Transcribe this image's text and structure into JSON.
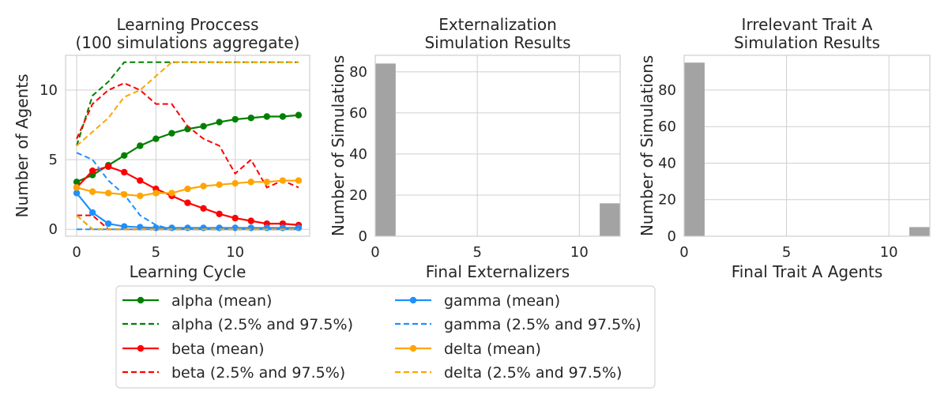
{
  "chart_data": [
    {
      "type": "line",
      "title": [
        "Learning Proccess",
        "(100 simulations aggregate)"
      ],
      "xlabel": "Learning Cycle",
      "ylabel": "Number of Agents",
      "xlim": [
        -0.7,
        14.7
      ],
      "ylim": [
        -0.5,
        12.5
      ],
      "xticks": [
        0,
        5,
        10
      ],
      "yticks": [
        0,
        5,
        10
      ],
      "grid": true,
      "x": [
        0,
        1,
        2,
        3,
        4,
        5,
        6,
        7,
        8,
        9,
        10,
        11,
        12,
        13,
        14
      ],
      "series": [
        {
          "name": "alpha (mean)",
          "style": "solid",
          "marker": true,
          "color": "#008000",
          "values": [
            3.4,
            3.9,
            4.6,
            5.3,
            6.0,
            6.5,
            6.9,
            7.2,
            7.4,
            7.7,
            7.9,
            8.0,
            8.1,
            8.1,
            8.2
          ]
        },
        {
          "name": "alpha (2.5% and 97.5%)",
          "style": "dashed",
          "marker": false,
          "color": "#008000",
          "values": [
            6.0,
            9.6,
            10.6,
            12.0,
            12.0,
            12.0,
            12.0,
            12.0,
            12.0,
            12.0,
            12.0,
            12.0,
            12.0,
            12.0,
            12.0
          ],
          "lower": [
            1.0,
            0.0,
            0.0,
            0.0,
            0.0,
            0.0,
            0.0,
            0.0,
            0.0,
            0.0,
            0.0,
            0.0,
            0.0,
            0.0,
            0.0
          ]
        },
        {
          "name": "beta (mean)",
          "style": "solid",
          "marker": true,
          "color": "#ff0000",
          "values": [
            3.0,
            4.2,
            4.5,
            4.1,
            3.5,
            2.9,
            2.4,
            1.9,
            1.5,
            1.1,
            0.8,
            0.6,
            0.4,
            0.4,
            0.3
          ]
        },
        {
          "name": "beta (2.5% and 97.5%)",
          "style": "dashed",
          "marker": false,
          "color": "#ff0000",
          "values": [
            6.5,
            9.0,
            10.0,
            10.5,
            10.0,
            9.0,
            9.0,
            7.4,
            6.5,
            6.0,
            4.0,
            5.0,
            3.0,
            3.5,
            3.0
          ],
          "lower": [
            1.0,
            1.0,
            0.0,
            0.0,
            0.0,
            0.0,
            0.0,
            0.0,
            0.0,
            0.0,
            0.0,
            0.0,
            0.0,
            0.0,
            0.0
          ]
        },
        {
          "name": "gamma (mean)",
          "style": "solid",
          "marker": true,
          "color": "#1e90ff",
          "values": [
            2.6,
            1.2,
            0.4,
            0.2,
            0.15,
            0.1,
            0.1,
            0.1,
            0.1,
            0.1,
            0.1,
            0.1,
            0.1,
            0.1,
            0.1
          ]
        },
        {
          "name": "gamma (2.5% and 97.5%)",
          "style": "dashed",
          "marker": false,
          "color": "#1e90ff",
          "values": [
            5.5,
            5.0,
            3.5,
            2.5,
            1.0,
            0.3,
            0.0,
            0.0,
            0.0,
            0.0,
            0.0,
            0.0,
            0.0,
            0.0,
            0.0
          ],
          "lower": [
            0.0,
            0.0,
            0.0,
            0.0,
            0.0,
            0.0,
            0.0,
            0.0,
            0.0,
            0.0,
            0.0,
            0.0,
            0.0,
            0.0,
            0.0
          ]
        },
        {
          "name": "delta (mean)",
          "style": "solid",
          "marker": true,
          "color": "#ffa500",
          "values": [
            3.0,
            2.7,
            2.6,
            2.5,
            2.4,
            2.6,
            2.6,
            2.9,
            3.1,
            3.2,
            3.3,
            3.4,
            3.4,
            3.5,
            3.5
          ]
        },
        {
          "name": "delta (2.5% and 97.5%)",
          "style": "dashed",
          "marker": false,
          "color": "#ffa500",
          "values": [
            6.0,
            7.0,
            8.0,
            9.5,
            10.0,
            11.0,
            12.0,
            12.0,
            12.0,
            12.0,
            12.0,
            12.0,
            12.0,
            12.0,
            12.0
          ],
          "lower": [
            1.0,
            0.0,
            0.0,
            0.0,
            0.0,
            0.0,
            0.0,
            0.0,
            0.0,
            0.0,
            0.0,
            0.0,
            0.0,
            0.0,
            0.0
          ]
        }
      ]
    },
    {
      "type": "bar",
      "title": [
        "Externalization",
        "Simulation Results"
      ],
      "xlabel": "Final Externalizers",
      "ylabel": "Number of Simulations",
      "xlim": [
        0,
        12
      ],
      "ylim": [
        0,
        88
      ],
      "xticks": [
        0,
        5,
        10
      ],
      "yticks": [
        0,
        20,
        40,
        60,
        80
      ],
      "grid": true,
      "bar_color": "#a3a3a3",
      "bins": [
        {
          "x0": 0,
          "x1": 1,
          "value": 84
        },
        {
          "x0": 11,
          "x1": 12,
          "value": 16
        }
      ]
    },
    {
      "type": "bar",
      "title": [
        "Irrelevant Trait A",
        "Simulation Results"
      ],
      "xlabel": "Final Trait A Agents",
      "ylabel": "Number of Simulations",
      "xlim": [
        0,
        12
      ],
      "ylim": [
        0,
        99
      ],
      "xticks": [
        0,
        5,
        10
      ],
      "yticks": [
        0,
        20,
        40,
        60,
        80
      ],
      "grid": true,
      "bar_color": "#a3a3a3",
      "bins": [
        {
          "x0": 0,
          "x1": 1,
          "value": 95
        },
        {
          "x0": 11,
          "x1": 12,
          "value": 5
        }
      ]
    }
  ],
  "legend": {
    "placement": "below",
    "columns": 2,
    "entries": [
      "alpha (mean)",
      "alpha (2.5% and 97.5%)",
      "beta (mean)",
      "beta (2.5% and 97.5%)",
      "gamma (mean)",
      "gamma (2.5% and 97.5%)",
      "delta (mean)",
      "delta (2.5% and 97.5%)"
    ]
  }
}
